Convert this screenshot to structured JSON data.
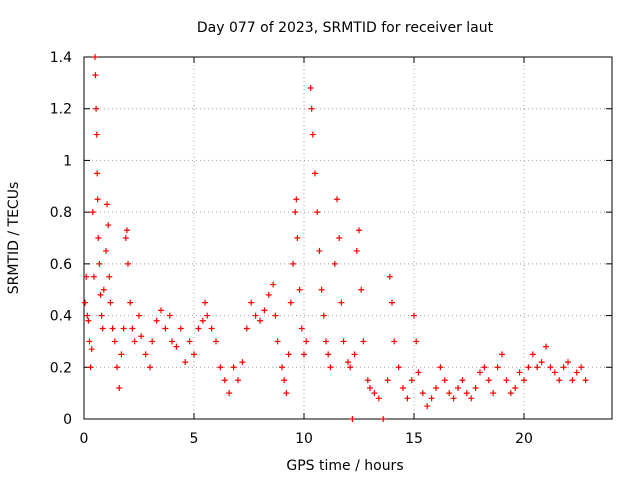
{
  "chart_data": {
    "type": "scatter",
    "title": "Day 077 of 2023, SRMTID for receiver laut",
    "xlabel": "GPS time / hours",
    "ylabel": "SRMTID / TECUs",
    "xlim": [
      0,
      24
    ],
    "ylim": [
      0,
      1.4
    ],
    "xticks": [
      {
        "value": 0,
        "label": "0"
      },
      {
        "value": 5,
        "label": "5"
      },
      {
        "value": 10,
        "label": "10"
      },
      {
        "value": 15,
        "label": "15"
      },
      {
        "value": 20,
        "label": "20"
      }
    ],
    "yticks": [
      {
        "value": 0,
        "label": "0"
      },
      {
        "value": 0.2,
        "label": "0.2"
      },
      {
        "value": 0.4,
        "label": "0.4"
      },
      {
        "value": 0.6,
        "label": "0.6"
      },
      {
        "value": 0.8,
        "label": "0.8"
      },
      {
        "value": 1.0,
        "label": "1"
      },
      {
        "value": 1.2,
        "label": "1.2"
      },
      {
        "value": 1.4,
        "label": "1.4"
      }
    ],
    "grid": true,
    "marker": "+",
    "color": "#ff0000",
    "series": [
      {
        "name": "SRMTID",
        "points": [
          [
            0.05,
            0.45
          ],
          [
            0.1,
            0.55
          ],
          [
            0.15,
            0.4
          ],
          [
            0.2,
            0.38
          ],
          [
            0.25,
            0.3
          ],
          [
            0.3,
            0.2
          ],
          [
            0.35,
            0.27
          ],
          [
            0.4,
            0.8
          ],
          [
            0.45,
            0.55
          ],
          [
            0.5,
            1.4
          ],
          [
            0.52,
            1.33
          ],
          [
            0.55,
            1.2
          ],
          [
            0.58,
            1.1
          ],
          [
            0.6,
            0.95
          ],
          [
            0.62,
            0.85
          ],
          [
            0.65,
            0.7
          ],
          [
            0.7,
            0.6
          ],
          [
            0.75,
            0.48
          ],
          [
            0.8,
            0.4
          ],
          [
            0.85,
            0.35
          ],
          [
            0.9,
            0.5
          ],
          [
            1.0,
            0.65
          ],
          [
            1.05,
            0.83
          ],
          [
            1.1,
            0.75
          ],
          [
            1.15,
            0.55
          ],
          [
            1.2,
            0.45
          ],
          [
            1.3,
            0.35
          ],
          [
            1.4,
            0.3
          ],
          [
            1.5,
            0.2
          ],
          [
            1.6,
            0.12
          ],
          [
            1.7,
            0.25
          ],
          [
            1.8,
            0.35
          ],
          [
            1.9,
            0.7
          ],
          [
            1.95,
            0.73
          ],
          [
            2.0,
            0.6
          ],
          [
            2.1,
            0.45
          ],
          [
            2.2,
            0.35
          ],
          [
            2.3,
            0.3
          ],
          [
            2.5,
            0.4
          ],
          [
            2.6,
            0.32
          ],
          [
            2.8,
            0.25
          ],
          [
            3.0,
            0.2
          ],
          [
            3.1,
            0.3
          ],
          [
            3.3,
            0.38
          ],
          [
            3.5,
            0.42
          ],
          [
            3.7,
            0.35
          ],
          [
            3.9,
            0.4
          ],
          [
            4.0,
            0.3
          ],
          [
            4.2,
            0.28
          ],
          [
            4.4,
            0.35
          ],
          [
            4.6,
            0.22
          ],
          [
            4.8,
            0.3
          ],
          [
            5.0,
            0.25
          ],
          [
            5.2,
            0.35
          ],
          [
            5.4,
            0.38
          ],
          [
            5.5,
            0.45
          ],
          [
            5.6,
            0.4
          ],
          [
            5.8,
            0.35
          ],
          [
            6.0,
            0.3
          ],
          [
            6.2,
            0.2
          ],
          [
            6.4,
            0.15
          ],
          [
            6.6,
            0.1
          ],
          [
            6.8,
            0.2
          ],
          [
            7.0,
            0.15
          ],
          [
            7.2,
            0.22
          ],
          [
            7.4,
            0.35
          ],
          [
            7.6,
            0.45
          ],
          [
            7.8,
            0.4
          ],
          [
            8.0,
            0.38
          ],
          [
            8.2,
            0.42
          ],
          [
            8.4,
            0.48
          ],
          [
            8.6,
            0.52
          ],
          [
            8.7,
            0.4
          ],
          [
            8.8,
            0.3
          ],
          [
            9.0,
            0.2
          ],
          [
            9.1,
            0.15
          ],
          [
            9.2,
            0.1
          ],
          [
            9.3,
            0.25
          ],
          [
            9.4,
            0.45
          ],
          [
            9.5,
            0.6
          ],
          [
            9.6,
            0.8
          ],
          [
            9.65,
            0.85
          ],
          [
            9.7,
            0.7
          ],
          [
            9.8,
            0.5
          ],
          [
            9.9,
            0.35
          ],
          [
            10.0,
            0.25
          ],
          [
            10.1,
            0.3
          ],
          [
            10.3,
            1.28
          ],
          [
            10.35,
            1.2
          ],
          [
            10.4,
            1.1
          ],
          [
            10.5,
            0.95
          ],
          [
            10.6,
            0.8
          ],
          [
            10.7,
            0.65
          ],
          [
            10.8,
            0.5
          ],
          [
            10.9,
            0.4
          ],
          [
            11.0,
            0.3
          ],
          [
            11.1,
            0.25
          ],
          [
            11.2,
            0.2
          ],
          [
            11.4,
            0.6
          ],
          [
            11.5,
            0.85
          ],
          [
            11.6,
            0.7
          ],
          [
            11.7,
            0.45
          ],
          [
            11.8,
            0.3
          ],
          [
            12.0,
            0.22
          ],
          [
            12.1,
            0.2
          ],
          [
            12.2,
            0.0
          ],
          [
            12.3,
            0.25
          ],
          [
            12.4,
            0.65
          ],
          [
            12.5,
            0.73
          ],
          [
            12.6,
            0.5
          ],
          [
            12.7,
            0.3
          ],
          [
            12.9,
            0.15
          ],
          [
            13.0,
            0.12
          ],
          [
            13.2,
            0.1
          ],
          [
            13.4,
            0.08
          ],
          [
            13.6,
            0.0
          ],
          [
            13.8,
            0.15
          ],
          [
            13.9,
            0.55
          ],
          [
            14.0,
            0.45
          ],
          [
            14.1,
            0.3
          ],
          [
            14.3,
            0.2
          ],
          [
            14.5,
            0.12
          ],
          [
            14.7,
            0.08
          ],
          [
            14.9,
            0.15
          ],
          [
            15.0,
            0.4
          ],
          [
            15.1,
            0.3
          ],
          [
            15.2,
            0.18
          ],
          [
            15.4,
            0.1
          ],
          [
            15.6,
            0.05
          ],
          [
            15.8,
            0.08
          ],
          [
            16.0,
            0.12
          ],
          [
            16.2,
            0.2
          ],
          [
            16.4,
            0.15
          ],
          [
            16.6,
            0.1
          ],
          [
            16.8,
            0.08
          ],
          [
            17.0,
            0.12
          ],
          [
            17.2,
            0.15
          ],
          [
            17.4,
            0.1
          ],
          [
            17.6,
            0.08
          ],
          [
            17.8,
            0.12
          ],
          [
            18.0,
            0.18
          ],
          [
            18.2,
            0.2
          ],
          [
            18.4,
            0.15
          ],
          [
            18.6,
            0.1
          ],
          [
            18.8,
            0.2
          ],
          [
            19.0,
            0.25
          ],
          [
            19.2,
            0.15
          ],
          [
            19.4,
            0.1
          ],
          [
            19.6,
            0.12
          ],
          [
            19.8,
            0.18
          ],
          [
            20.0,
            0.15
          ],
          [
            20.2,
            0.2
          ],
          [
            20.4,
            0.25
          ],
          [
            20.6,
            0.2
          ],
          [
            20.8,
            0.22
          ],
          [
            21.0,
            0.28
          ],
          [
            21.2,
            0.2
          ],
          [
            21.4,
            0.18
          ],
          [
            21.6,
            0.15
          ],
          [
            21.8,
            0.2
          ],
          [
            22.0,
            0.22
          ],
          [
            22.2,
            0.15
          ],
          [
            22.4,
            0.18
          ],
          [
            22.6,
            0.2
          ],
          [
            22.8,
            0.15
          ]
        ]
      }
    ]
  }
}
